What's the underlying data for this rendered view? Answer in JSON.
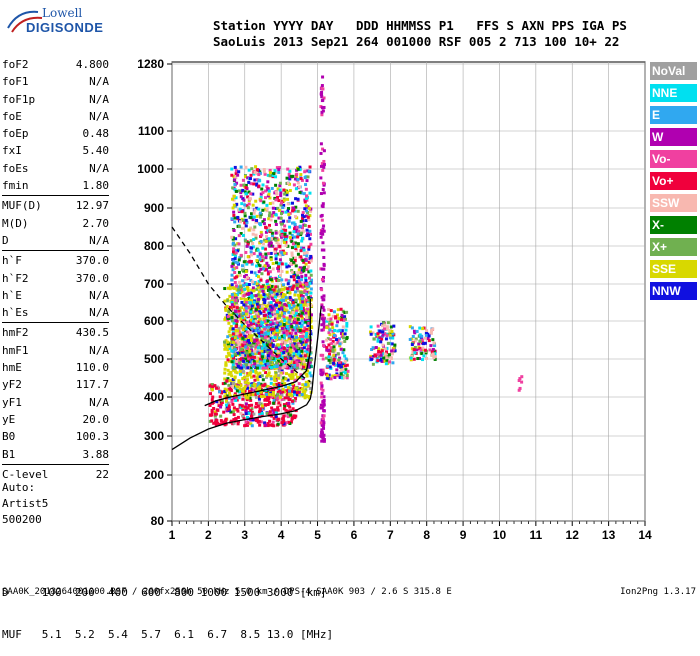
{
  "logo": {
    "line1": "Lowell",
    "line2": "DIGISONDE"
  },
  "header": {
    "line1": "Station YYYY DAY   DDD HHMMSS P1   FFS S AXN PPS IGA PS",
    "line2": "SaoLuis 2013 Sep21 264 001000 RSF 005 2 713 100 10+ 22"
  },
  "params": [
    {
      "label": "foF2",
      "value": "4.800"
    },
    {
      "label": "foF1",
      "value": "N/A"
    },
    {
      "label": "foF1p",
      "value": "N/A"
    },
    {
      "label": "foE",
      "value": "N/A"
    },
    {
      "label": "foEp",
      "value": "0.48"
    },
    {
      "label": "fxI",
      "value": "5.40"
    },
    {
      "label": "foEs",
      "value": "N/A"
    },
    {
      "label": "fmin",
      "value": "1.80"
    },
    {
      "sep": true
    },
    {
      "label": "MUF(D)",
      "value": "12.97"
    },
    {
      "label": "M(D)",
      "value": "2.70"
    },
    {
      "label": "D",
      "value": "N/A"
    },
    {
      "sep": true
    },
    {
      "label": "h`F",
      "value": "370.0"
    },
    {
      "label": "h`F2",
      "value": "370.0"
    },
    {
      "label": "h`E",
      "value": "N/A"
    },
    {
      "label": "h`Es",
      "value": "N/A"
    },
    {
      "sep": true
    },
    {
      "label": "hmF2",
      "value": "430.5"
    },
    {
      "label": "hmF1",
      "value": "N/A"
    },
    {
      "label": "hmE",
      "value": "110.0"
    },
    {
      "label": "yF2",
      "value": "117.7"
    },
    {
      "label": "yF1",
      "value": "N/A"
    },
    {
      "label": "yE",
      "value": "20.0"
    },
    {
      "label": "B0",
      "value": "100.3"
    },
    {
      "label": "B1",
      "value": "3.88"
    },
    {
      "sep": true
    },
    {
      "label": "C-level",
      "value": "22"
    }
  ],
  "auto": {
    "line1": "Auto:",
    "line2": "Artist5",
    "line3": "500200"
  },
  "legend": [
    {
      "label": "NoVal",
      "color": "#a0a0a0"
    },
    {
      "label": "NNE",
      "color": "#00e0f0"
    },
    {
      "label": "E",
      "color": "#30a8f0"
    },
    {
      "label": "W",
      "color": "#b000b0"
    },
    {
      "label": "Vo-",
      "color": "#f040a0"
    },
    {
      "label": "Vo+",
      "color": "#f0003c"
    },
    {
      "label": "SSW",
      "color": "#f8b8b0"
    },
    {
      "label": "X-",
      "color": "#008000"
    },
    {
      "label": "X+",
      "color": "#70b050"
    },
    {
      "label": "SSE",
      "color": "#d8d800"
    },
    {
      "label": "NNW",
      "color": "#1010e0"
    }
  ],
  "bottom": {
    "line1": "D     100  200  400  600  800 1000 1500 3000 [km]",
    "line2": "MUF   5.1  5.2  5.4  5.7  6.1  6.7  8.5 13.0 [MHz]"
  },
  "footer": "SAA0K_2013264001000.RSF / 260fx256h 50 kHz 5.0 km / DPS-4 SAA0K 903 / 2.6 S 315.8 E",
  "version": "Ion2Png 1.3.17",
  "chart_data": {
    "type": "scatter",
    "title": "",
    "xlabel": "",
    "ylabel": "",
    "xlim": [
      1,
      14
    ],
    "ylim": [
      80,
      1280
    ],
    "x_ticks": [
      1,
      2,
      3,
      4,
      5,
      6,
      7,
      8,
      9,
      10,
      11,
      12,
      13,
      14
    ],
    "y_ticks": [
      80,
      200,
      300,
      400,
      500,
      600,
      700,
      800,
      900,
      1000,
      1100,
      1280
    ],
    "grid": true,
    "scale_note": "y axis nonlinear",
    "clusters": [
      {
        "x": [
          2.0,
          4.4
        ],
        "y": [
          330,
          440
        ],
        "series": "Vo+"
      },
      {
        "x": [
          2.4,
          4.8
        ],
        "y": [
          400,
          700
        ],
        "series": "SSE"
      },
      {
        "x": [
          2.6,
          4.8
        ],
        "y": [
          480,
          1010
        ],
        "series": "mixed"
      },
      {
        "x": [
          5.05,
          5.15
        ],
        "y": [
          290,
          1270
        ],
        "series": "W"
      },
      {
        "x": [
          5.2,
          5.8
        ],
        "y": [
          450,
          640
        ],
        "series": "mixed"
      },
      {
        "x": [
          6.4,
          7.1
        ],
        "y": [
          490,
          600
        ],
        "series": "mixed"
      },
      {
        "x": [
          7.5,
          8.2
        ],
        "y": [
          500,
          590
        ],
        "series": "mixed"
      },
      {
        "x": [
          10.5,
          10.6
        ],
        "y": [
          420,
          460
        ],
        "series": "Vo-"
      }
    ],
    "traces": [
      {
        "name": "dashed",
        "style": "dashed",
        "points": [
          [
            1.0,
            850
          ],
          [
            1.5,
            780
          ],
          [
            2.0,
            700
          ],
          [
            2.5,
            640
          ],
          [
            3.0,
            590
          ],
          [
            3.5,
            545
          ],
          [
            4.0,
            500
          ],
          [
            4.5,
            460
          ],
          [
            4.8,
            440
          ]
        ]
      },
      {
        "name": "lower",
        "style": "solid",
        "points": [
          [
            1.0,
            265
          ],
          [
            1.5,
            295
          ],
          [
            2.0,
            318
          ],
          [
            2.5,
            333
          ],
          [
            3.0,
            342
          ],
          [
            3.5,
            350
          ],
          [
            4.0,
            357
          ],
          [
            4.4,
            365
          ],
          [
            4.7,
            380
          ],
          [
            4.8,
            395
          ],
          [
            4.85,
            420
          ],
          [
            4.9,
            470
          ],
          [
            5.0,
            550
          ],
          [
            5.1,
            640
          ]
        ]
      },
      {
        "name": "trace",
        "style": "solid",
        "points": [
          [
            1.9,
            378
          ],
          [
            2.2,
            390
          ],
          [
            2.6,
            400
          ],
          [
            3.0,
            408
          ],
          [
            3.5,
            418
          ],
          [
            4.0,
            428
          ],
          [
            4.4,
            440
          ],
          [
            4.7,
            470
          ],
          [
            4.8,
            520
          ],
          [
            4.8,
            660
          ]
        ]
      }
    ]
  }
}
